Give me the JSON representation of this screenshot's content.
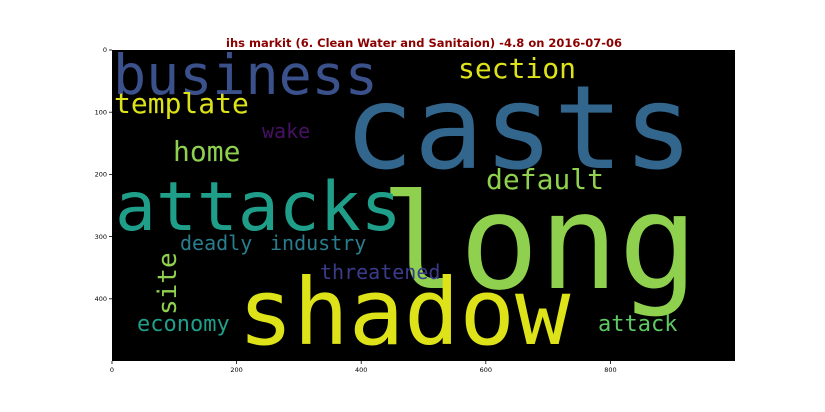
{
  "chart_data": {
    "type": "wordcloud",
    "title": "ihs markit (6. Clean Water and Sanitaion) -4.8 on 2016-07-06",
    "title_color": "#8b0000",
    "background_color": "#000000",
    "x_ticks": [
      "0",
      "200",
      "400",
      "600",
      "800"
    ],
    "y_ticks": [
      "0",
      "100",
      "200",
      "300",
      "400"
    ],
    "xlim": [
      0,
      1000
    ],
    "ylim": [
      500,
      0
    ],
    "words": [
      {
        "text": "casts",
        "color": "#33668c"
      },
      {
        "text": "long",
        "color": "#8fd14f"
      },
      {
        "text": "shadow",
        "color": "#dde318"
      },
      {
        "text": "attacks",
        "color": "#1f9e89"
      },
      {
        "text": "business",
        "color": "#3b518b"
      },
      {
        "text": "section",
        "color": "#dde318"
      },
      {
        "text": "template",
        "color": "#dde318"
      },
      {
        "text": "default",
        "color": "#8fd14f"
      },
      {
        "text": "home",
        "color": "#8fd14f"
      },
      {
        "text": "wake",
        "color": "#471164"
      },
      {
        "text": "deadly",
        "color": "#287d8e"
      },
      {
        "text": "industry",
        "color": "#287d8e"
      },
      {
        "text": "site",
        "color": "#8fd14f"
      },
      {
        "text": "threatened",
        "color": "#3b3b8c"
      },
      {
        "text": "economy",
        "color": "#1f9e89"
      },
      {
        "text": "attack",
        "color": "#5ec962"
      }
    ]
  }
}
